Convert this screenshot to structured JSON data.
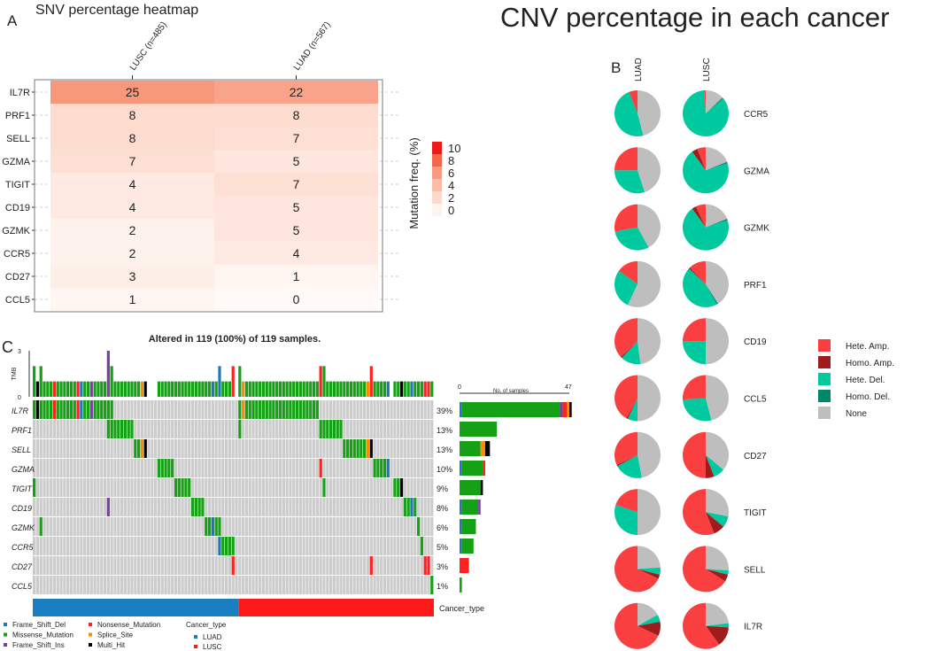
{
  "panels": {
    "a": "A",
    "b": "B",
    "c": "C"
  },
  "chart_data": [
    {
      "type": "heatmap",
      "title": "SNV percentage heatmap",
      "columns": [
        "LUSC (n=485)",
        "LUAD (n=567)"
      ],
      "genes": [
        "IL7R",
        "PRF1",
        "SELL",
        "GZMA",
        "TIGIT",
        "CD19",
        "GZMK",
        "CCR5",
        "CD27",
        "CCL5"
      ],
      "values": [
        [
          25,
          22
        ],
        [
          8,
          8
        ],
        [
          8,
          7
        ],
        [
          7,
          5
        ],
        [
          4,
          7
        ],
        [
          4,
          5
        ],
        [
          2,
          5
        ],
        [
          2,
          4
        ],
        [
          3,
          1
        ],
        [
          1,
          0
        ]
      ],
      "legend_title": "Mutation freq. (%)",
      "legend_ticks": [
        "10",
        "8",
        "6",
        "4",
        "2",
        "0"
      ],
      "legend_colors": [
        "#ee1a1a",
        "#f4664a",
        "#f89a80",
        "#fbbca8",
        "#fdd9cd",
        "#fff3ee"
      ]
    },
    {
      "type": "pie",
      "title": "CNV percentage in each cancer",
      "columns": [
        "LUAD",
        "LUSC"
      ],
      "categories": [
        "Hete. Amp.",
        "Homo. Amp.",
        "Hete. Del.",
        "Homo. Del.",
        "None"
      ],
      "colors": [
        "#f93f3f",
        "#a01c1c",
        "#00c9a0",
        "#00876a",
        "#bebebe"
      ],
      "genes": [
        "CCR5",
        "GZMA",
        "GZMK",
        "PRF1",
        "CD19",
        "CCL5",
        "CD27",
        "TIGIT",
        "SELL",
        "IL7R"
      ],
      "fractions": [
        [
          [
            0.06,
            0,
            0.48,
            0,
            0.46
          ],
          [
            0.01,
            0,
            0.85,
            0.01,
            0.13
          ]
        ],
        [
          [
            0.25,
            0,
            0.3,
            0,
            0.45
          ],
          [
            0.06,
            0.04,
            0.7,
            0.01,
            0.19
          ]
        ],
        [
          [
            0.28,
            0,
            0.3,
            0,
            0.42
          ],
          [
            0.07,
            0.03,
            0.7,
            0.01,
            0.19
          ]
        ],
        [
          [
            0.15,
            0,
            0.28,
            0,
            0.57
          ],
          [
            0.12,
            0.01,
            0.45,
            0.01,
            0.41
          ]
        ],
        [
          [
            0.37,
            0.01,
            0.14,
            0,
            0.48
          ],
          [
            0.25,
            0,
            0.25,
            0,
            0.5
          ]
        ],
        [
          [
            0.42,
            0.01,
            0.07,
            0,
            0.5
          ],
          [
            0.26,
            0,
            0.28,
            0,
            0.46
          ]
        ],
        [
          [
            0.32,
            0.01,
            0.2,
            0,
            0.47
          ],
          [
            0.5,
            0.06,
            0.08,
            0,
            0.36
          ]
        ],
        [
          [
            0.2,
            0,
            0.3,
            0,
            0.5
          ],
          [
            0.56,
            0.08,
            0.08,
            0,
            0.28
          ]
        ],
        [
          [
            0.68,
            0.03,
            0.05,
            0,
            0.24
          ],
          [
            0.66,
            0.05,
            0.03,
            0,
            0.26
          ]
        ],
        [
          [
            0.68,
            0.1,
            0.05,
            0,
            0.17
          ],
          [
            0.6,
            0.14,
            0.03,
            0,
            0.23
          ]
        ]
      ]
    },
    {
      "type": "table",
      "subtype": "oncoplot",
      "title": "Altered in 119 (100%) of 119 samples.",
      "n_samples": 119,
      "tmb_label": "TMB",
      "tmb_ticks": [
        "3",
        "0"
      ],
      "bar_axis": {
        "min": "0",
        "max": "47",
        "label": "No. of samples",
        "max_value": 47
      },
      "genes": [
        "IL7R",
        "PRF1",
        "SELL",
        "GZMA",
        "TIGIT",
        "CD19",
        "GZMK",
        "CCR5",
        "CD27",
        "CCL5"
      ],
      "percents": [
        "39%",
        "13%",
        "13%",
        "10%",
        "9%",
        "8%",
        "6%",
        "5%",
        "3%",
        "1%"
      ],
      "mutations": [
        [
          [
            0,
            0,
            "M"
          ],
          [
            1,
            1,
            "X"
          ],
          [
            2,
            5,
            "M"
          ],
          [
            6,
            6,
            "N"
          ],
          [
            7,
            12,
            "M"
          ],
          [
            13,
            13,
            "N"
          ],
          [
            14,
            14,
            "D"
          ],
          [
            15,
            16,
            "M"
          ],
          [
            17,
            17,
            "I"
          ],
          [
            18,
            23,
            "M"
          ],
          [
            61,
            61,
            "M"
          ],
          [
            62,
            62,
            "S"
          ],
          [
            63,
            84,
            "M"
          ]
        ],
        [
          [
            22,
            29,
            "M"
          ],
          [
            61,
            61,
            "M"
          ],
          [
            85,
            91,
            "M"
          ]
        ],
        [
          [
            30,
            31,
            "M"
          ],
          [
            32,
            32,
            "S"
          ],
          [
            33,
            33,
            "X"
          ],
          [
            92,
            98,
            "M"
          ],
          [
            99,
            99,
            "S"
          ],
          [
            100,
            100,
            "X"
          ]
        ],
        [
          [
            37,
            41,
            "M"
          ],
          [
            85,
            85,
            "N"
          ],
          [
            101,
            104,
            "M"
          ],
          [
            105,
            105,
            "D"
          ]
        ],
        [
          [
            0,
            0,
            "M"
          ],
          [
            42,
            46,
            "M"
          ],
          [
            86,
            86,
            "M"
          ],
          [
            107,
            108,
            "M"
          ],
          [
            109,
            109,
            "X"
          ]
        ],
        [
          [
            22,
            22,
            "I"
          ],
          [
            47,
            50,
            "M"
          ],
          [
            110,
            111,
            "M"
          ],
          [
            112,
            112,
            "D"
          ],
          [
            113,
            113,
            "M"
          ]
        ],
        [
          [
            2,
            2,
            "M"
          ],
          [
            51,
            52,
            "M"
          ],
          [
            53,
            53,
            "D"
          ],
          [
            54,
            55,
            "M"
          ],
          [
            114,
            114,
            "M"
          ]
        ],
        [
          [
            55,
            55,
            "D"
          ],
          [
            56,
            59,
            "M"
          ],
          [
            115,
            115,
            "M"
          ]
        ],
        [
          [
            59,
            59,
            "N"
          ],
          [
            100,
            100,
            "N"
          ],
          [
            116,
            117,
            "N"
          ]
        ],
        [
          [
            118,
            118,
            "M"
          ]
        ]
      ],
      "cancer_type": {
        "label": "Cancer_type",
        "luad_range": [
          0,
          60
        ],
        "lusc_range": [
          61,
          118
        ]
      },
      "mutation_legend": [
        {
          "code": "D",
          "label": "Frame_Shift_Del",
          "color": "#1f78b4"
        },
        {
          "code": "M",
          "label": "Missense_Mutation",
          "color": "#16a016"
        },
        {
          "code": "I",
          "label": "Frame_Shift_Ins",
          "color": "#7b3f9e"
        },
        {
          "code": "N",
          "label": "Nonsense_Mutation",
          "color": "#ff2020"
        },
        {
          "code": "S",
          "label": "Splice_Site",
          "color": "#ff8c00"
        },
        {
          "code": "X",
          "label": "Multi_Hit",
          "color": "#000000"
        }
      ],
      "cancer_legend": {
        "title": "Cancer_type",
        "items": [
          {
            "label": "LUAD",
            "color": "#1a7fc0"
          },
          {
            "label": "LUSC",
            "color": "#ff1a1a"
          }
        ]
      }
    }
  ]
}
